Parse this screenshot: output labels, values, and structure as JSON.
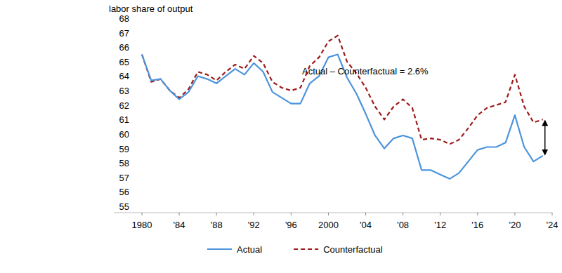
{
  "chart_data": {
    "type": "line",
    "y_label": "labor share of output",
    "annotations": [
      "Actual – Counterfactual = 2.6%"
    ],
    "x": [
      1980,
      1981,
      1982,
      1983,
      1984,
      1985,
      1986,
      1987,
      1988,
      1989,
      1990,
      1991,
      1992,
      1993,
      1994,
      1995,
      1996,
      1997,
      1998,
      1999,
      2000,
      2001,
      2002,
      2003,
      2004,
      2005,
      2006,
      2007,
      2008,
      2009,
      2010,
      2011,
      2012,
      2013,
      2014,
      2015,
      2016,
      2017,
      2018,
      2019,
      2020,
      2021,
      2022,
      2023
    ],
    "series": [
      {
        "name": "Actual",
        "color": "#4d94db",
        "line_style": "solid",
        "values": [
          65.5,
          63.7,
          63.8,
          63.0,
          62.4,
          62.9,
          64.0,
          63.8,
          63.5,
          64.0,
          64.5,
          64.1,
          64.9,
          64.3,
          62.9,
          62.5,
          62.1,
          62.1,
          63.5,
          64.0,
          65.3,
          65.5,
          63.9,
          62.8,
          61.4,
          59.9,
          59.0,
          59.7,
          59.9,
          59.7,
          57.5,
          57.5,
          57.2,
          56.9,
          57.3,
          58.1,
          58.9,
          59.1,
          59.1,
          59.4,
          61.3,
          59.1,
          58.1,
          58.5
        ]
      },
      {
        "name": "Counterfactual",
        "color": "#9c1c1c",
        "line_style": "dashed",
        "values": [
          65.5,
          63.6,
          63.8,
          63.0,
          62.5,
          63.1,
          64.3,
          64.1,
          63.7,
          64.3,
          64.8,
          64.5,
          65.4,
          64.9,
          63.6,
          63.2,
          63.0,
          63.2,
          64.7,
          65.3,
          66.4,
          66.8,
          65.0,
          64.2,
          63.2,
          61.9,
          61.0,
          61.9,
          62.4,
          61.8,
          59.6,
          59.7,
          59.6,
          59.3,
          59.6,
          60.4,
          61.3,
          61.8,
          62.0,
          62.2,
          64.1,
          61.9,
          60.8,
          61.0
        ]
      }
    ],
    "xlim": [
      1980,
      2024
    ],
    "xticks": [
      1980,
      {
        "value": 1984,
        "label": "'84"
      },
      {
        "value": 1988,
        "label": "'88"
      },
      {
        "value": 1992,
        "label": "'92"
      },
      {
        "value": 1996,
        "label": "'96"
      },
      2000,
      {
        "value": 2004,
        "label": "'04"
      },
      {
        "value": 2008,
        "label": "'08"
      },
      {
        "value": 2012,
        "label": "'12"
      },
      {
        "value": 2016,
        "label": "'16"
      },
      {
        "value": 2020,
        "label": "'20"
      },
      {
        "value": 2024,
        "label": "'24"
      }
    ],
    "ylim": [
      55,
      68
    ],
    "yticks": [
      55,
      56,
      57,
      58,
      59,
      60,
      61,
      62,
      63,
      64,
      65,
      66,
      67,
      68
    ],
    "grid": false,
    "legend": "bottom"
  }
}
